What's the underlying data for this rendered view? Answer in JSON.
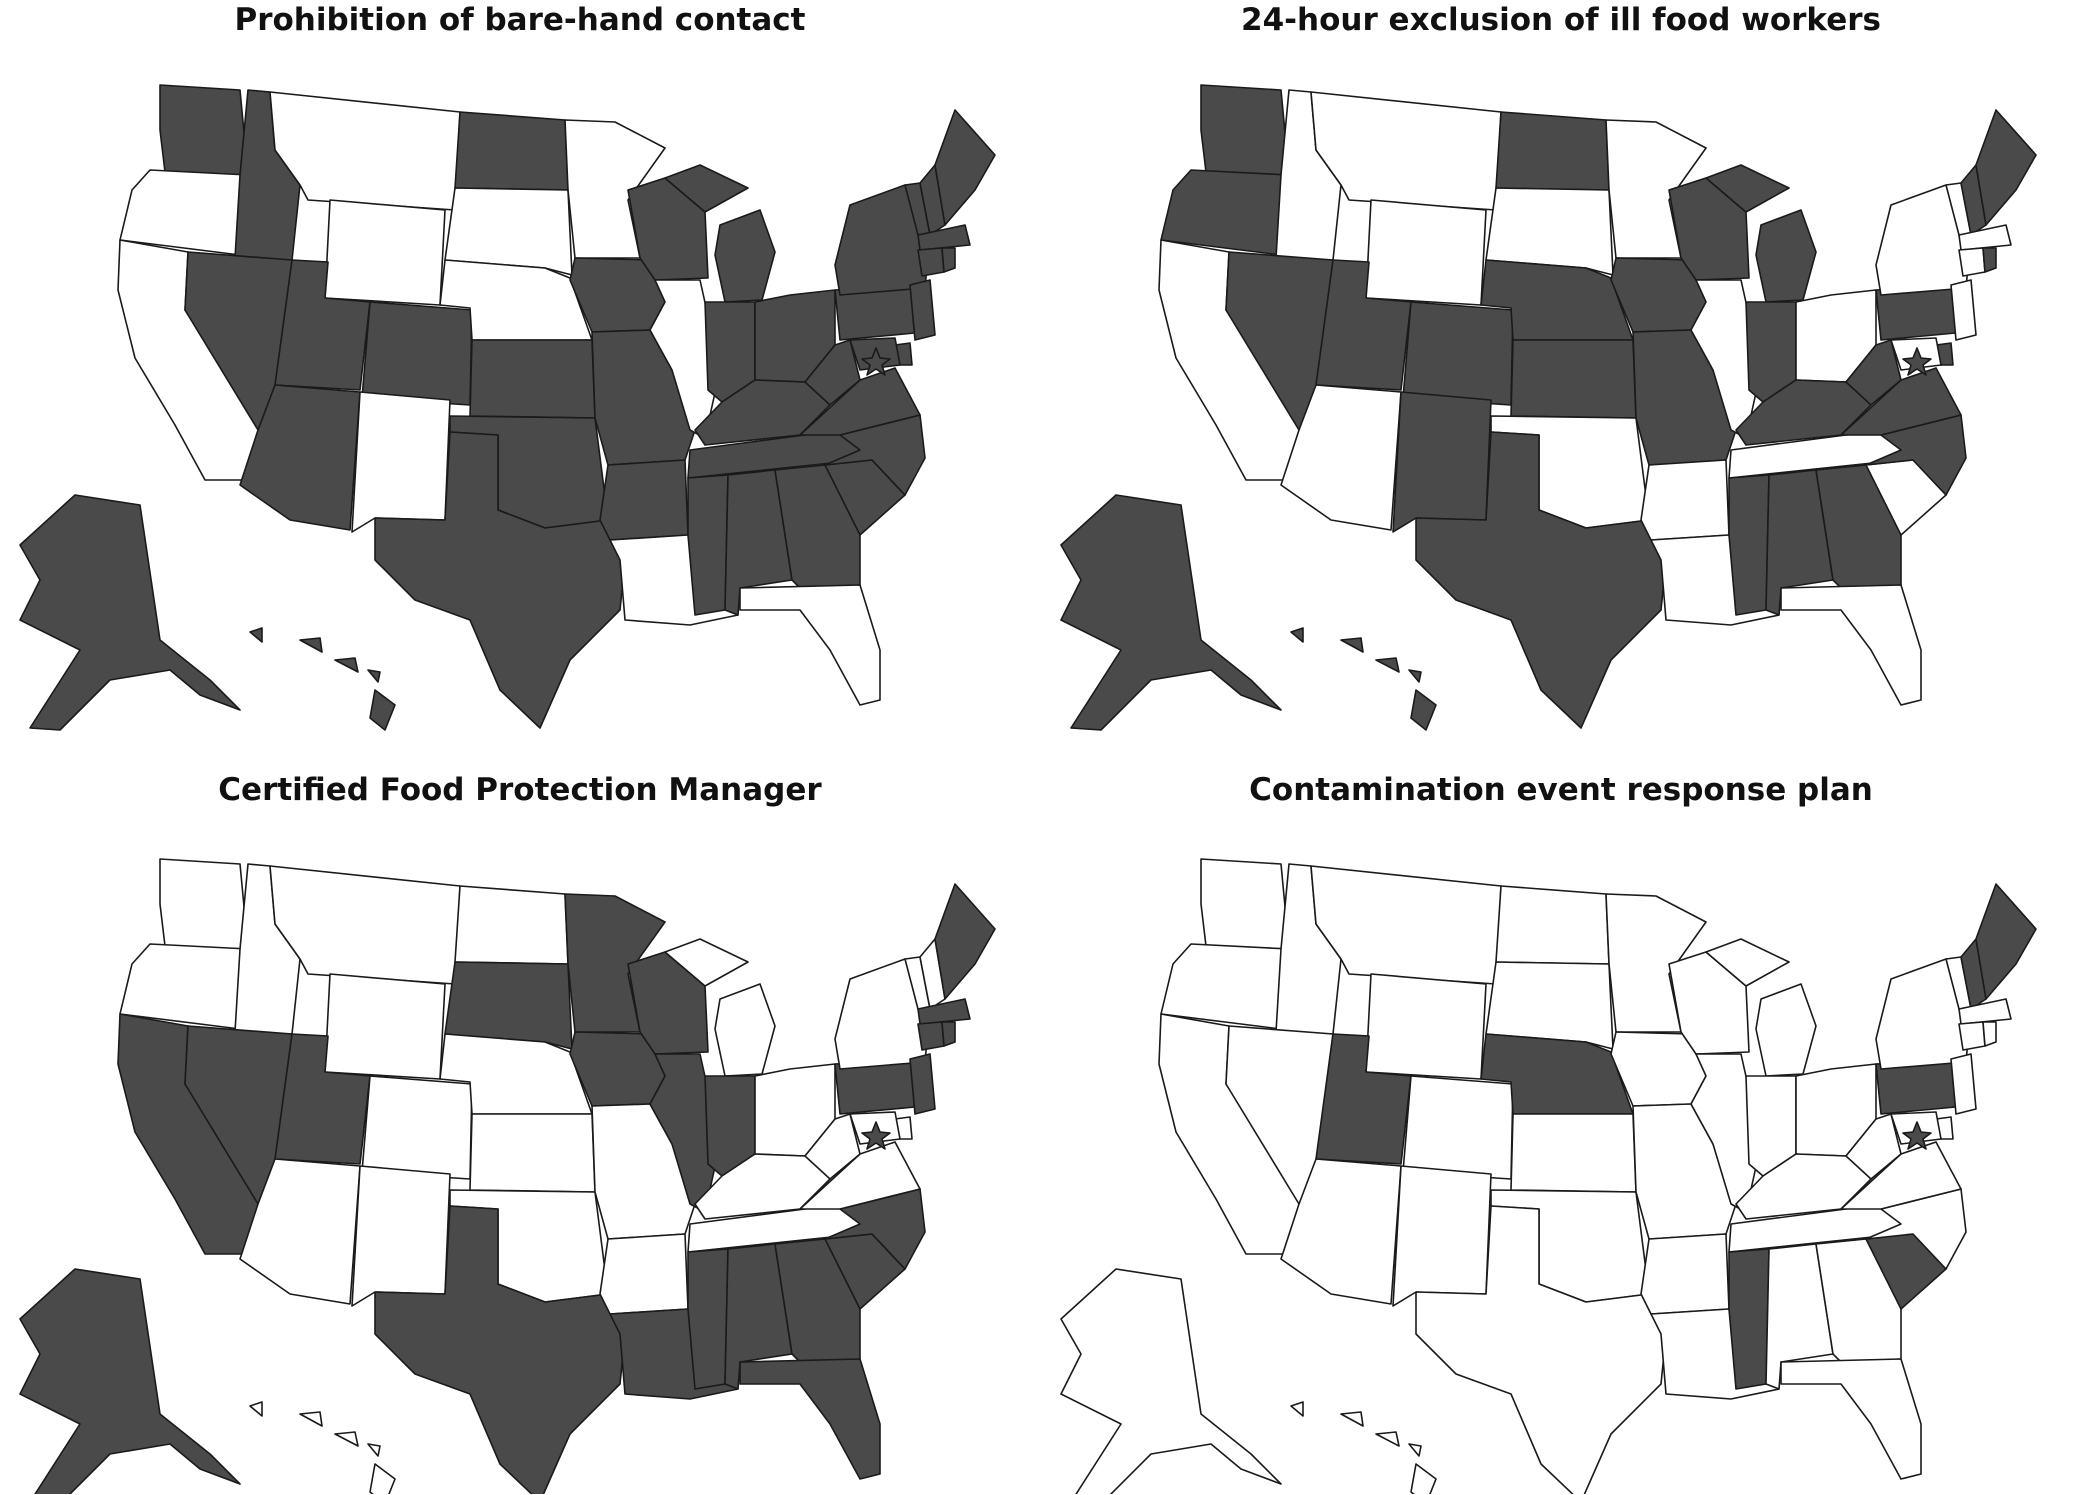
{
  "colors": {
    "required": "#4a4a4a",
    "not_required": "#ffffff",
    "border": "#1a1a1a"
  },
  "panels": [
    {
      "title": "Prohibition of bare-hand contact",
      "shaded": [
        "WA",
        "ID",
        "NV",
        "UT",
        "AZ",
        "CO",
        "ND",
        "KS",
        "OK",
        "TX",
        "IA",
        "MO",
        "AR",
        "MS",
        "AL",
        "GA",
        "SC",
        "NC",
        "TN",
        "KY",
        "IN",
        "OH",
        "MI",
        "WI",
        "WV",
        "VA",
        "MD",
        "DE",
        "NJ",
        "PA",
        "NY",
        "VT",
        "NH",
        "ME",
        "MA",
        "CT",
        "RI",
        "AK",
        "HI",
        "DC"
      ]
    },
    {
      "title": "24-hour exclusion of ill food workers",
      "shaded": [
        "WA",
        "OR",
        "NV",
        "UT",
        "CO",
        "NM",
        "TX",
        "ND",
        "NE",
        "KS",
        "IA",
        "MO",
        "WI",
        "MI",
        "IN",
        "KY",
        "WV",
        "VA",
        "NC",
        "PA",
        "MS",
        "AL",
        "GA",
        "NH",
        "ME",
        "RI",
        "DE",
        "AK",
        "HI",
        "DC"
      ]
    },
    {
      "title": "Certified Food Protection Manager",
      "shaded": [
        "CA",
        "NV",
        "UT",
        "SD",
        "MN",
        "IA",
        "WI",
        "IL",
        "IN",
        "TX",
        "LA",
        "MS",
        "AL",
        "GA",
        "FL",
        "SC",
        "NC",
        "PA",
        "NJ",
        "MA",
        "CT",
        "RI",
        "ME",
        "AK",
        "DC"
      ]
    },
    {
      "title": "Contamination event response plan",
      "shaded": [
        "UT",
        "NE",
        "MS",
        "SC",
        "PA",
        "NH",
        "ME",
        "DC"
      ]
    }
  ]
}
